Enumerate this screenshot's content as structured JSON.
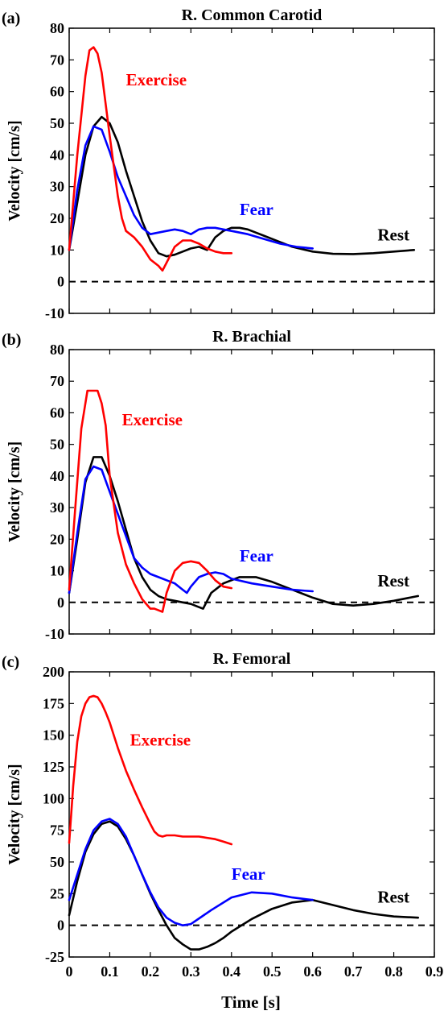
{
  "figure": {
    "xlabel": "Time [s]",
    "x_ticks": [
      "0",
      "0.1",
      "0.2",
      "0.3",
      "0.4",
      "0.5",
      "0.6",
      "0.7",
      "0.8",
      "0.9"
    ]
  },
  "colors": {
    "Rest": "#000000",
    "Fear": "#0000ff",
    "Exercise": "#ff0000",
    "zero_line": "#000000"
  },
  "chart_data": [
    {
      "type": "line",
      "panel_label": "(a)",
      "title": "R. Common Carotid",
      "ylabel": "Velocity [cm/s]",
      "xlim": [
        0,
        0.9
      ],
      "ylim": [
        -10,
        80
      ],
      "y_ticks": [
        "-10",
        "0",
        "10",
        "20",
        "30",
        "40",
        "50",
        "60",
        "70",
        "80"
      ],
      "zero_line": true,
      "labels": [
        {
          "name": "Exercise",
          "series": "Exercise",
          "x": 0.14,
          "y": 62
        },
        {
          "name": "Fear",
          "series": "Fear",
          "x": 0.42,
          "y": 21
        },
        {
          "name": "Rest",
          "series": "Rest",
          "x": 0.76,
          "y": 13
        }
      ],
      "series": [
        {
          "name": "Rest",
          "x": [
            0,
            0.02,
            0.04,
            0.06,
            0.08,
            0.1,
            0.12,
            0.14,
            0.16,
            0.18,
            0.2,
            0.22,
            0.24,
            0.26,
            0.28,
            0.3,
            0.32,
            0.34,
            0.36,
            0.38,
            0.4,
            0.42,
            0.44,
            0.46,
            0.48,
            0.5,
            0.55,
            0.6,
            0.65,
            0.7,
            0.75,
            0.8,
            0.85
          ],
          "y": [
            10,
            25,
            40,
            49,
            52,
            50,
            44,
            35,
            27,
            19,
            13,
            9,
            8,
            8.5,
            9.5,
            10.5,
            11,
            10,
            14,
            16,
            17,
            17,
            16.5,
            15.5,
            14.5,
            13.5,
            11,
            9.5,
            8.8,
            8.7,
            9,
            9.5,
            10
          ]
        },
        {
          "name": "Fear",
          "x": [
            0,
            0.02,
            0.04,
            0.06,
            0.08,
            0.1,
            0.12,
            0.14,
            0.16,
            0.18,
            0.2,
            0.22,
            0.24,
            0.26,
            0.28,
            0.3,
            0.32,
            0.34,
            0.36,
            0.38,
            0.4,
            0.44,
            0.48,
            0.52,
            0.56,
            0.6
          ],
          "y": [
            10,
            29,
            43,
            49,
            48,
            41,
            33,
            27,
            21,
            17,
            15,
            15.5,
            16,
            16.5,
            16,
            15,
            16.5,
            17,
            17,
            16.5,
            16,
            15,
            13.5,
            12,
            11,
            10.5
          ]
        },
        {
          "name": "Exercise",
          "x": [
            0,
            0.02,
            0.04,
            0.05,
            0.06,
            0.07,
            0.08,
            0.1,
            0.12,
            0.13,
            0.14,
            0.15,
            0.16,
            0.18,
            0.2,
            0.22,
            0.23,
            0.24,
            0.26,
            0.28,
            0.3,
            0.32,
            0.34,
            0.36,
            0.38,
            0.4
          ],
          "y": [
            10,
            40,
            65,
            73,
            74,
            72,
            66,
            46,
            27,
            20,
            16,
            15,
            14,
            11,
            7,
            5,
            3.5,
            6,
            11,
            13,
            13,
            12,
            10.5,
            9.5,
            9,
            9
          ]
        }
      ]
    },
    {
      "type": "line",
      "panel_label": "(b)",
      "title": "R. Brachial",
      "ylabel": "Velocity [cm/s]",
      "xlim": [
        0,
        0.9
      ],
      "ylim": [
        -10,
        80
      ],
      "y_ticks": [
        "-10",
        "0",
        "10",
        "20",
        "30",
        "40",
        "50",
        "60",
        "70",
        "80"
      ],
      "zero_line": true,
      "labels": [
        {
          "name": "Exercise",
          "series": "Exercise",
          "x": 0.13,
          "y": 56
        },
        {
          "name": "Fear",
          "series": "Fear",
          "x": 0.42,
          "y": 13
        },
        {
          "name": "Rest",
          "series": "Rest",
          "x": 0.76,
          "y": 5
        }
      ],
      "series": [
        {
          "name": "Rest",
          "x": [
            0,
            0.02,
            0.04,
            0.06,
            0.08,
            0.1,
            0.12,
            0.14,
            0.16,
            0.18,
            0.2,
            0.22,
            0.24,
            0.26,
            0.28,
            0.3,
            0.32,
            0.33,
            0.35,
            0.38,
            0.42,
            0.46,
            0.5,
            0.55,
            0.6,
            0.65,
            0.7,
            0.75,
            0.8,
            0.86
          ],
          "y": [
            3,
            20,
            38,
            46,
            46,
            40,
            32,
            23,
            14,
            8,
            4,
            2,
            1,
            0.5,
            0,
            -0.5,
            -1.5,
            -2,
            3,
            6,
            8,
            8,
            6.5,
            4,
            1.5,
            -0.5,
            -1,
            -0.5,
            0.5,
            2
          ]
        },
        {
          "name": "Fear",
          "x": [
            0,
            0.02,
            0.04,
            0.06,
            0.08,
            0.1,
            0.12,
            0.14,
            0.16,
            0.18,
            0.2,
            0.22,
            0.24,
            0.26,
            0.28,
            0.29,
            0.3,
            0.32,
            0.34,
            0.36,
            0.38,
            0.4,
            0.45,
            0.5,
            0.55,
            0.6
          ],
          "y": [
            3,
            22,
            39,
            43,
            42,
            35,
            28,
            21,
            14,
            11,
            9,
            8,
            7,
            6,
            4,
            3,
            5,
            8,
            9,
            9.5,
            9,
            7.5,
            6,
            5,
            4,
            3.5
          ]
        },
        {
          "name": "Exercise",
          "x": [
            0,
            0.015,
            0.03,
            0.045,
            0.055,
            0.07,
            0.08,
            0.09,
            0.1,
            0.12,
            0.14,
            0.16,
            0.18,
            0.2,
            0.21,
            0.22,
            0.23,
            0.24,
            0.26,
            0.28,
            0.3,
            0.32,
            0.34,
            0.36,
            0.38,
            0.4
          ],
          "y": [
            4,
            30,
            55,
            67,
            67,
            67,
            63,
            56,
            40,
            22,
            12,
            6,
            1,
            -2,
            -2,
            -2.5,
            -3,
            3,
            10,
            12.5,
            13,
            12.5,
            10,
            7,
            5,
            4.5
          ]
        }
      ]
    },
    {
      "type": "line",
      "panel_label": "(c)",
      "title": "R. Femoral",
      "ylabel": "Velocity [cm/s]",
      "xlabel": "Time [s]",
      "xlim": [
        0,
        0.9
      ],
      "ylim": [
        -25,
        200
      ],
      "y_ticks": [
        "-25",
        "0",
        "25",
        "50",
        "75",
        "100",
        "125",
        "150",
        "175",
        "200"
      ],
      "zero_line": true,
      "labels": [
        {
          "name": "Exercise",
          "series": "Exercise",
          "x": 0.15,
          "y": 142
        },
        {
          "name": "Fear",
          "series": "Fear",
          "x": 0.4,
          "y": 36
        },
        {
          "name": "Rest",
          "series": "Rest",
          "x": 0.76,
          "y": 18
        }
      ],
      "series": [
        {
          "name": "Rest",
          "x": [
            0,
            0.02,
            0.04,
            0.06,
            0.08,
            0.1,
            0.12,
            0.14,
            0.16,
            0.18,
            0.2,
            0.22,
            0.24,
            0.26,
            0.28,
            0.3,
            0.32,
            0.34,
            0.36,
            0.38,
            0.4,
            0.45,
            0.5,
            0.55,
            0.6,
            0.65,
            0.7,
            0.75,
            0.8,
            0.86
          ],
          "y": [
            8,
            35,
            58,
            72,
            80,
            82,
            78,
            68,
            55,
            40,
            25,
            12,
            0,
            -10,
            -15,
            -19,
            -19,
            -17,
            -14,
            -10,
            -5,
            5,
            13,
            18,
            20,
            16,
            12,
            9,
            7,
            6
          ]
        },
        {
          "name": "Fear",
          "x": [
            0,
            0.02,
            0.04,
            0.06,
            0.08,
            0.1,
            0.12,
            0.14,
            0.16,
            0.18,
            0.2,
            0.22,
            0.24,
            0.26,
            0.28,
            0.3,
            0.35,
            0.4,
            0.45,
            0.5,
            0.55,
            0.6
          ],
          "y": [
            20,
            40,
            60,
            75,
            82,
            84,
            80,
            70,
            55,
            40,
            26,
            14,
            6,
            2,
            0,
            1,
            12,
            22,
            26,
            25,
            22,
            20
          ]
        },
        {
          "name": "Exercise",
          "x": [
            0,
            0.01,
            0.02,
            0.03,
            0.04,
            0.05,
            0.06,
            0.07,
            0.08,
            0.09,
            0.1,
            0.12,
            0.14,
            0.16,
            0.18,
            0.2,
            0.21,
            0.22,
            0.23,
            0.24,
            0.26,
            0.28,
            0.3,
            0.32,
            0.34,
            0.36,
            0.38,
            0.4
          ],
          "y": [
            65,
            110,
            145,
            165,
            175,
            180,
            181,
            180,
            175,
            168,
            160,
            140,
            122,
            107,
            93,
            80,
            74,
            71,
            70,
            71,
            71,
            70,
            70,
            70,
            69,
            68,
            66,
            64
          ]
        }
      ]
    }
  ]
}
